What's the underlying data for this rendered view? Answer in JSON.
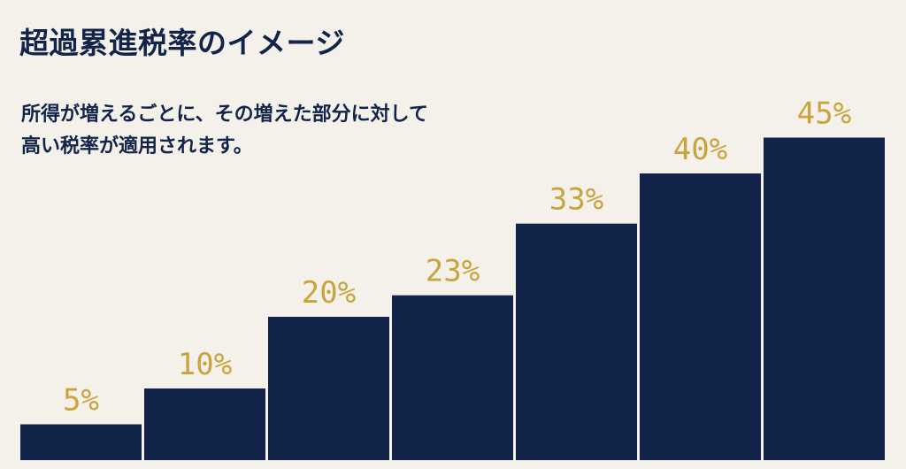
{
  "title": "超過累進税率のイメージ",
  "description": {
    "line1": "所得が増えるごとに、その増えた部分に対して",
    "line2": "高い税率が適用されます。"
  },
  "colors": {
    "background": "#f3f1e9",
    "bar": "#13244b",
    "label": "#c9a33d",
    "text": "#13244b"
  },
  "chart_data": {
    "type": "bar",
    "values": [
      5,
      10,
      20,
      23,
      33,
      40,
      45
    ],
    "labels": [
      "5%",
      "10%",
      "20%",
      "23%",
      "33%",
      "40%",
      "45%"
    ],
    "ylim": [
      0,
      50
    ]
  }
}
